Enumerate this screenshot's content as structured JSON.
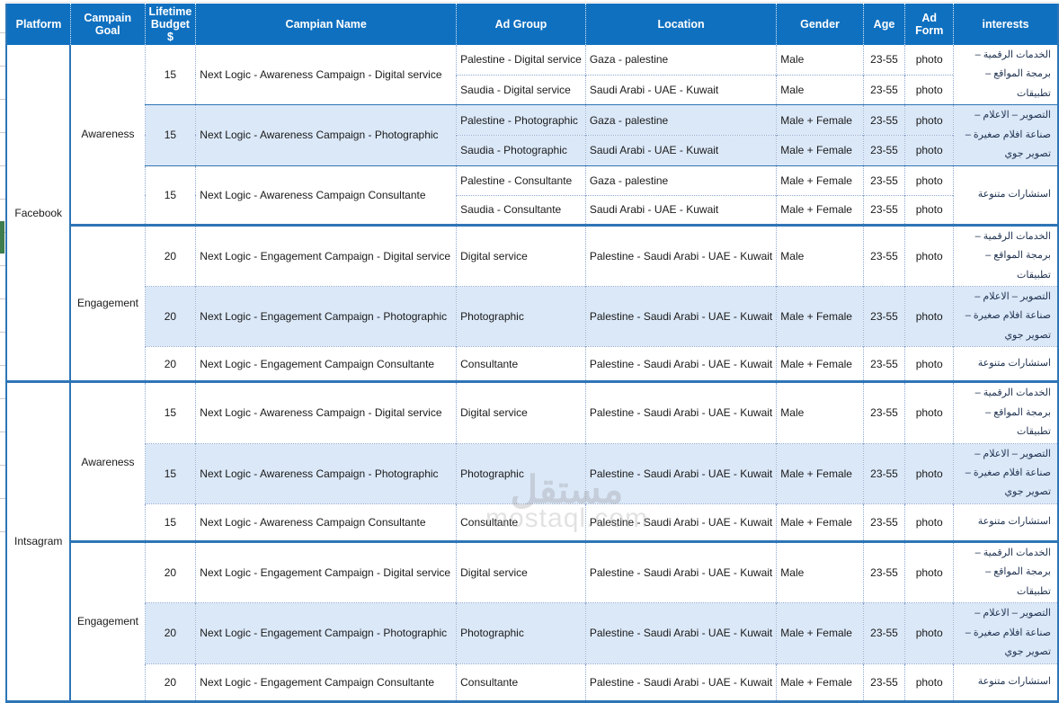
{
  "colors": {
    "header_bg": "#0F70C0",
    "band_blue": "#DBE8F8",
    "border_blue": "#2E75B6",
    "dotted_grid": "#8FAAD0",
    "green_marker": "#3E7D4E"
  },
  "header": {
    "columns": [
      {
        "key": "platform",
        "label": "Platform"
      },
      {
        "key": "goal",
        "label": "Campain Goal"
      },
      {
        "key": "budget",
        "label": "Lifetime Budget $"
      },
      {
        "key": "name",
        "label": "Campian Name"
      },
      {
        "key": "ad_group",
        "label": "Ad Group"
      },
      {
        "key": "location",
        "label": "Location"
      },
      {
        "key": "gender",
        "label": "Gender"
      },
      {
        "key": "age",
        "label": "Age"
      },
      {
        "key": "ad_form",
        "label": "Ad Form"
      },
      {
        "key": "interests",
        "label": "interests"
      }
    ]
  },
  "interests_text": {
    "digital": "الخدمات الرقمية – برمجة المواقع – تطبيقات",
    "photo": "التصوير – الاعلام  – صناعة افلام صغيرة – تصوير جوي",
    "consult": "استشارات متنوعة"
  },
  "platforms": [
    {
      "label": "Facebook",
      "sections": [
        {
          "goal": "Awareness",
          "campaigns": [
            {
              "budget": "15",
              "name": "Next Logic - Awareness Campaign - Digital service",
              "shaded": false,
              "interests": "الخدمات الرقمية – برمجة المواقع – تطبيقات",
              "rows": [
                {
                  "ad_group": "Palestine - Digital service",
                  "location": "Gaza - palestine",
                  "gender": "Male",
                  "age": "23-55",
                  "ad_form": "photo"
                },
                {
                  "ad_group": "Saudia - Digital service",
                  "location": "Saudi Arabi - UAE -  Kuwait",
                  "gender": "Male",
                  "age": "23-55",
                  "ad_form": "photo"
                }
              ]
            },
            {
              "budget": "15",
              "name": "Next Logic - Awareness Campaign -  Photographic",
              "shaded": true,
              "interests": "التصوير – الاعلام  – صناعة افلام صغيرة – تصوير جوي",
              "rows": [
                {
                  "ad_group": "Palestine - Photographic",
                  "location": "Gaza - palestine",
                  "gender": "Male + Female",
                  "age": "23-55",
                  "ad_form": "photo"
                },
                {
                  "ad_group": "Saudia - Photographic",
                  "location": "Saudi Arabi - UAE -  Kuwait",
                  "gender": "Male + Female",
                  "age": "23-55",
                  "ad_form": "photo"
                }
              ]
            },
            {
              "budget": "15",
              "name": "Next Logic - Awareness Campaign Consultante",
              "shaded": false,
              "interests": "استشارات متنوعة",
              "rows": [
                {
                  "ad_group": "Palestine - Consultante",
                  "location": "Gaza - palestine",
                  "gender": "Male + Female",
                  "age": "23-55",
                  "ad_form": "photo"
                },
                {
                  "ad_group": "Saudia - Consultante",
                  "location": "Saudi Arabi - UAE -  Kuwait",
                  "gender": "Male + Female",
                  "age": "23-55",
                  "ad_form": "photo"
                }
              ]
            }
          ]
        },
        {
          "goal": "Engagement",
          "campaigns": [
            {
              "budget": "20",
              "name": "Next Logic - Engagement Campaign -   Digital service",
              "shaded": false,
              "interests": "الخدمات الرقمية – برمجة المواقع – تطبيقات",
              "rows": [
                {
                  "ad_group": "Digital service",
                  "location": "Palestine - Saudi Arabi - UAE -  Kuwait",
                  "gender": "Male",
                  "age": "23-55",
                  "ad_form": "photo"
                }
              ]
            },
            {
              "budget": "20",
              "name": "Next Logic - Engagement Campaign -  Photographic",
              "shaded": true,
              "interests": "التصوير – الاعلام  – صناعة افلام صغيرة – تصوير جوي",
              "rows": [
                {
                  "ad_group": "Photographic",
                  "location": "Palestine - Saudi Arabi - UAE -  Kuwait",
                  "gender": "Male + Female",
                  "age": "23-55",
                  "ad_form": "photo"
                }
              ]
            },
            {
              "budget": "20",
              "name": "Next Logic - Engagement Campaign Consultante",
              "shaded": false,
              "interests": "استشارات متنوعة",
              "rows": [
                {
                  "ad_group": "Consultante",
                  "location": "Palestine - Saudi Arabi - UAE -  Kuwait",
                  "gender": "Male + Female",
                  "age": "23-55",
                  "ad_form": "photo"
                }
              ]
            }
          ]
        }
      ]
    },
    {
      "label": "Intsagram",
      "sections": [
        {
          "goal": "Awareness",
          "campaigns": [
            {
              "budget": "15",
              "name": "Next Logic - Awareness Campaign -   Digital service",
              "shaded": false,
              "interests": "الخدمات الرقمية – برمجة المواقع – تطبيقات",
              "rows": [
                {
                  "ad_group": "Digital service",
                  "location": "Palestine - Saudi Arabi - UAE -  Kuwait",
                  "gender": "Male",
                  "age": "23-55",
                  "ad_form": "photo"
                }
              ]
            },
            {
              "budget": "15",
              "name": "Next Logic - Awareness Campaign -  Photographic",
              "shaded": true,
              "interests": "التصوير – الاعلام  – صناعة افلام صغيرة – تصوير جوي",
              "rows": [
                {
                  "ad_group": "Photographic",
                  "location": "Palestine - Saudi Arabi - UAE -  Kuwait",
                  "gender": "Male + Female",
                  "age": "23-55",
                  "ad_form": "photo"
                }
              ]
            },
            {
              "budget": "15",
              "name": "Next Logic - Awareness Campaign Consultante",
              "shaded": false,
              "interests": "استشارات متنوعة",
              "rows": [
                {
                  "ad_group": "Consultante",
                  "location": "Palestine - Saudi Arabi - UAE -  Kuwait",
                  "gender": "Male + Female",
                  "age": "23-55",
                  "ad_form": "photo"
                }
              ]
            }
          ]
        },
        {
          "goal": "Engagement",
          "campaigns": [
            {
              "budget": "20",
              "name": "Next Logic - Engagement Campaign -   Digital service",
              "shaded": false,
              "interests": "الخدمات الرقمية – برمجة المواقع – تطبيقات",
              "rows": [
                {
                  "ad_group": "Digital service",
                  "location": "Palestine - Saudi Arabi - UAE -  Kuwait",
                  "gender": "Male",
                  "age": "23-55",
                  "ad_form": "photo"
                }
              ]
            },
            {
              "budget": "20",
              "name": "Next Logic - Engagement Campaign -  Photographic",
              "shaded": true,
              "interests": "التصوير – الاعلام  – صناعة افلام صغيرة – تصوير جوي",
              "rows": [
                {
                  "ad_group": "Photographic",
                  "location": "Palestine - Saudi Arabi - UAE -  Kuwait",
                  "gender": "Male + Female",
                  "age": "23-55",
                  "ad_form": "photo"
                }
              ]
            },
            {
              "budget": "20",
              "name": "Next Logic - Engagement Campaign Consultante",
              "shaded": false,
              "interests": "استشارات متنوعة",
              "rows": [
                {
                  "ad_group": "Consultante",
                  "location": "Palestine - Saudi Arabi - UAE -  Kuwait",
                  "gender": "Male + Female",
                  "age": "23-55",
                  "ad_form": "photo"
                }
              ]
            }
          ]
        }
      ]
    }
  ],
  "watermark": {
    "arabic": "مستقل",
    "latin": "mostaql.com"
  }
}
